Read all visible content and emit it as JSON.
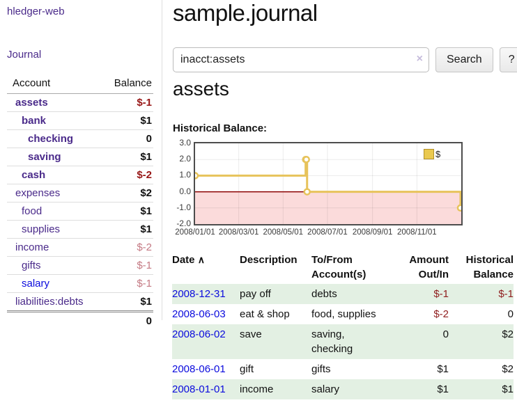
{
  "app": {
    "brand": "hledger-web",
    "nav_journal": "Journal"
  },
  "sidebar": {
    "header": {
      "account": "Account",
      "balance": "Balance"
    },
    "accounts": [
      {
        "name": "assets",
        "indent": 0,
        "bold": true,
        "link": "visited",
        "balance": "$-1",
        "balance_class": "neg"
      },
      {
        "name": "bank",
        "indent": 1,
        "bold": true,
        "link": "visited",
        "balance": "$1",
        "balance_class": "pos"
      },
      {
        "name": "checking",
        "indent": 2,
        "bold": true,
        "link": "visited",
        "balance": "0",
        "balance_class": "pos"
      },
      {
        "name": "saving",
        "indent": 2,
        "bold": true,
        "link": "visited",
        "balance": "$1",
        "balance_class": "pos"
      },
      {
        "name": "cash",
        "indent": 1,
        "bold": true,
        "link": "visited",
        "balance": "$-2",
        "balance_class": "neg"
      },
      {
        "name": "expenses",
        "indent": 0,
        "bold": false,
        "link": "visited",
        "balance": "$2",
        "balance_class": "pos"
      },
      {
        "name": "food",
        "indent": 1,
        "bold": false,
        "link": "visited",
        "balance": "$1",
        "balance_class": "pos"
      },
      {
        "name": "supplies",
        "indent": 1,
        "bold": false,
        "link": "visited",
        "balance": "$1",
        "balance_class": "pos"
      },
      {
        "name": "income",
        "indent": 0,
        "bold": false,
        "link": "visited",
        "balance": "$-2",
        "balance_class": "neg-muted"
      },
      {
        "name": "gifts",
        "indent": 1,
        "bold": false,
        "link": "visited",
        "balance": "$-1",
        "balance_class": "neg-muted"
      },
      {
        "name": "salary",
        "indent": 1,
        "bold": false,
        "link": "unvisited",
        "balance": "$-1",
        "balance_class": "neg-muted"
      },
      {
        "name": "liabilities:debts",
        "indent": 0,
        "bold": false,
        "link": "visited",
        "balance": "$1",
        "balance_class": "pos"
      }
    ],
    "total": "0"
  },
  "main": {
    "title": "sample.journal",
    "search": {
      "value": "inacct:assets",
      "clear_icon": "×",
      "button_label": "Search",
      "help_label": "?"
    },
    "account_heading": "assets",
    "chart_label": "Historical Balance:"
  },
  "chart_data": {
    "type": "line",
    "title": "Historical Balance",
    "step": true,
    "legend": [
      {
        "label": "$",
        "color": "#eac94f"
      }
    ],
    "legend_position": "top-right",
    "grid": true,
    "ylim": [
      -2,
      3
    ],
    "y_ticks": [
      "3.0",
      "2.0",
      "1.0",
      "0.0",
      "-1.0",
      "-2.0"
    ],
    "x_range": [
      "2008-01-01",
      "2009-01-01"
    ],
    "x_ticks": [
      {
        "date": "2008-01-01",
        "label": "2008/01/01"
      },
      {
        "date": "2008-03-01",
        "label": "2008/03/01"
      },
      {
        "date": "2008-05-01",
        "label": "2008/05/01"
      },
      {
        "date": "2008-07-01",
        "label": "2008/07/01"
      },
      {
        "date": "2008-09-01",
        "label": "2008/09/01"
      },
      {
        "date": "2008-11-01",
        "label": "2008/11/01"
      }
    ],
    "points": [
      {
        "date": "2008-01-01",
        "value": 1
      },
      {
        "date": "2008-06-01",
        "value": 2
      },
      {
        "date": "2008-06-02",
        "value": 2
      },
      {
        "date": "2008-06-03",
        "value": 0
      },
      {
        "date": "2008-12-31",
        "value": -1
      }
    ],
    "line_color": "#e7c35b",
    "point_fill": "#ffffff",
    "negative_region_color": "#fbdbdb",
    "zero_line_color": "#8b0000",
    "grid_color": "rgba(0,0,0,0.08)",
    "border_color": "#4d4d4d"
  },
  "table": {
    "headers": [
      "Date",
      "Description",
      "To/From Account(s)",
      "Amount Out/In",
      "Historical Balance"
    ],
    "sort_icon": "∧",
    "rows": [
      {
        "date": "2008-12-31",
        "description": "pay off",
        "accounts": "debts",
        "amount": "$-1",
        "amount_neg": true,
        "balance": "$-1",
        "balance_neg": true
      },
      {
        "date": "2008-06-03",
        "description": "eat & shop",
        "accounts": "food, supplies",
        "amount": "$-2",
        "amount_neg": true,
        "balance": "0",
        "balance_neg": false
      },
      {
        "date": "2008-06-02",
        "description": "save",
        "accounts": "saving, checking",
        "amount": "0",
        "amount_neg": false,
        "balance": "$2",
        "balance_neg": false
      },
      {
        "date": "2008-06-01",
        "description": "gift",
        "accounts": "gifts",
        "amount": "$1",
        "amount_neg": false,
        "balance": "$2",
        "balance_neg": false
      },
      {
        "date": "2008-01-01",
        "description": "income",
        "accounts": "salary",
        "amount": "$1",
        "amount_neg": false,
        "balance": "$1",
        "balance_neg": false
      }
    ]
  }
}
